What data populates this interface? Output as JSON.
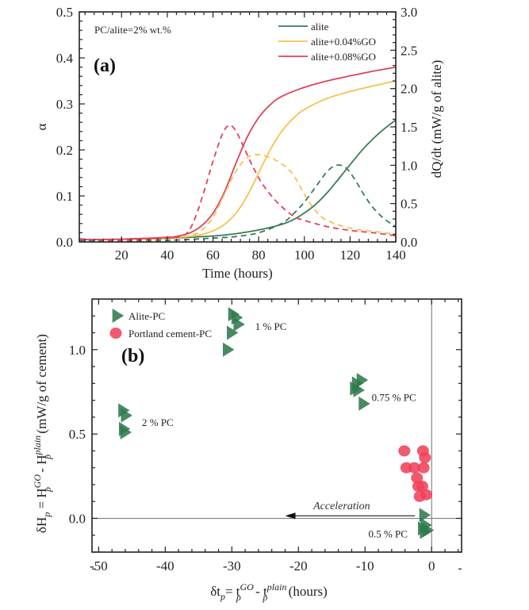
{
  "chart_data": [
    {
      "id": "a",
      "type": "line",
      "panel_label": "(a)",
      "annotation": "PC/alite=2% wt.%",
      "xlabel": "Time (hours)",
      "ylabel_left": "α",
      "ylabel_right": "dQ/dt (mW/g of alite)",
      "xlim": [
        1.5,
        140
      ],
      "ylim_left": [
        0,
        0.5
      ],
      "ylim_right": [
        0,
        3.0
      ],
      "x_ticks": [
        20,
        40,
        60,
        80,
        100,
        120,
        140
      ],
      "y_ticks_left": [
        "0.0",
        "0.1",
        "0.2",
        "0.3",
        "0.4",
        "0.5"
      ],
      "y_ticks_right": [
        "0.0",
        "0.5",
        "1.0",
        "1.5",
        "2.0",
        "2.5",
        "3.0"
      ],
      "legend": {
        "position": "top-right",
        "entries": [
          {
            "label": "alite",
            "color": "#3d7a57"
          },
          {
            "label": "alite+0.04%GO",
            "color": "#f7c14f"
          },
          {
            "label": "alite+0.08%GO",
            "color": "#e0435a"
          }
        ]
      },
      "series": [
        {
          "name": "alite α",
          "axis": "left",
          "style": "solid",
          "color": "#3d7a57",
          "x": [
            1.5,
            20,
            40,
            60,
            70,
            80,
            90,
            95,
            100,
            105,
            110,
            115,
            120,
            125,
            130,
            135,
            140
          ],
          "y": [
            0.005,
            0.006,
            0.008,
            0.013,
            0.018,
            0.026,
            0.038,
            0.048,
            0.063,
            0.082,
            0.107,
            0.137,
            0.168,
            0.198,
            0.224,
            0.246,
            0.265
          ]
        },
        {
          "name": "alite+0.04%GO α",
          "axis": "left",
          "style": "solid",
          "color": "#f7c14f",
          "x": [
            1.5,
            20,
            40,
            50,
            55,
            60,
            65,
            70,
            75,
            80,
            85,
            90,
            95,
            100,
            110,
            120,
            130,
            140
          ],
          "y": [
            0.005,
            0.006,
            0.009,
            0.012,
            0.016,
            0.024,
            0.038,
            0.062,
            0.1,
            0.15,
            0.2,
            0.24,
            0.268,
            0.288,
            0.312,
            0.327,
            0.339,
            0.35
          ]
        },
        {
          "name": "alite+0.08%GO α",
          "axis": "left",
          "style": "solid",
          "color": "#e0435a",
          "x": [
            1.5,
            20,
            40,
            45,
            50,
            55,
            60,
            65,
            70,
            75,
            80,
            85,
            90,
            100,
            110,
            120,
            130,
            140
          ],
          "y": [
            0.005,
            0.006,
            0.01,
            0.013,
            0.02,
            0.035,
            0.062,
            0.108,
            0.17,
            0.228,
            0.27,
            0.298,
            0.316,
            0.336,
            0.35,
            0.361,
            0.371,
            0.38
          ]
        },
        {
          "name": "alite dQ/dt",
          "axis": "right",
          "style": "dashed",
          "color": "#3d7a57",
          "x": [
            1.5,
            20,
            40,
            60,
            70,
            80,
            90,
            95,
            100,
            105,
            110,
            114,
            118,
            122,
            126,
            130,
            135,
            140
          ],
          "y": [
            0.02,
            0.01,
            0.02,
            0.05,
            0.07,
            0.12,
            0.24,
            0.36,
            0.52,
            0.72,
            0.92,
            1.0,
            0.97,
            0.82,
            0.62,
            0.45,
            0.3,
            0.2
          ]
        },
        {
          "name": "alite+0.04%GO dQ/dt",
          "axis": "right",
          "style": "dashed",
          "color": "#f7c14f",
          "x": [
            1.5,
            20,
            40,
            50,
            55,
            60,
            65,
            70,
            75,
            80,
            85,
            90,
            95,
            100,
            105,
            110,
            120,
            130,
            140
          ],
          "y": [
            0.04,
            0.02,
            0.04,
            0.08,
            0.15,
            0.32,
            0.62,
            0.92,
            1.1,
            1.14,
            1.1,
            1.02,
            0.88,
            0.62,
            0.4,
            0.28,
            0.18,
            0.14,
            0.1
          ]
        },
        {
          "name": "alite+0.08%GO dQ/dt",
          "axis": "right",
          "style": "dashed",
          "color": "#e0435a",
          "x": [
            1.5,
            20,
            40,
            48,
            52,
            56,
            60,
            64,
            67,
            70,
            74,
            78,
            82,
            88,
            95,
            100,
            110,
            120,
            130,
            140
          ],
          "y": [
            0.04,
            0.02,
            0.05,
            0.1,
            0.3,
            0.65,
            1.05,
            1.4,
            1.52,
            1.45,
            1.2,
            0.95,
            0.74,
            0.52,
            0.34,
            0.28,
            0.2,
            0.15,
            0.12,
            0.08
          ]
        }
      ]
    },
    {
      "id": "b",
      "type": "scatter",
      "panel_label": "(b)",
      "xlabel": "δt_p = t_p^GO - t_p^plain (hours)",
      "xlabel_parts": {
        "main": "δt",
        "sub1": "p",
        "eq": "= t",
        "sup2": "GO",
        "sub2": "p",
        "minus": " - t",
        "sup3": "plain",
        "sub3": "p",
        "unit": " (hours)"
      },
      "ylabel": "δH_p = H_p^GO - H_p^plain (mW/g of cement)",
      "ylabel_parts": {
        "main": "δH",
        "sub1": "p",
        "eq": " = H",
        "sup2": "GO",
        "sub2": "p",
        "minus": " - H",
        "sup3": "plain",
        "sub3": "p",
        "unit": " (mW/g of cement)"
      },
      "xlim": [
        -51,
        4.5
      ],
      "ylim": [
        -0.2,
        1.3
      ],
      "x_ticks": [
        "-50",
        "-40",
        "-30",
        "-20",
        "-10",
        "0"
      ],
      "x_tick_values": [
        -50,
        -40,
        -30,
        -20,
        -10,
        0
      ],
      "y_ticks": [
        "0.0",
        "0.5",
        "1.0"
      ],
      "y_tick_values": [
        0.0,
        0.5,
        1.0
      ],
      "reference_lines": {
        "x": 0,
        "y": 0
      },
      "legend": {
        "position": "top-left",
        "entries": [
          {
            "label": "Alite-PC",
            "marker": "triangle-right",
            "color": "#2f7a4d"
          },
          {
            "label": "Portland cement-PC",
            "marker": "circle",
            "color": "#f0415a"
          }
        ]
      },
      "annotations": [
        {
          "text": "1 % PC",
          "x": -26.5,
          "y": 1.14
        },
        {
          "text": "2 % PC",
          "x": -43.5,
          "y": 0.57
        },
        {
          "text": "0.75 % PC",
          "x": -9.0,
          "y": 0.72
        },
        {
          "text": "0.5 % PC",
          "x": -9.5,
          "y": -0.09
        },
        {
          "text": "Acceleration",
          "x": -13.5,
          "y": 0.035,
          "arrow_from_x": -2.5,
          "arrow_to_x": -22.0,
          "arrow_y": 0.015
        }
      ],
      "series": [
        {
          "name": "Alite-PC",
          "marker": "triangle-right",
          "color": "#2f7a4d",
          "points": [
            [
              -29.8,
              1.21
            ],
            [
              -29.3,
              1.19
            ],
            [
              -29.0,
              1.15
            ],
            [
              -30.0,
              1.1
            ],
            [
              -30.6,
              1.0
            ],
            [
              -46.3,
              0.64
            ],
            [
              -45.9,
              0.61
            ],
            [
              -46.2,
              0.53
            ],
            [
              -46.0,
              0.51
            ],
            [
              -10.5,
              0.82
            ],
            [
              -11.2,
              0.8
            ],
            [
              -11.5,
              0.77
            ],
            [
              -11.0,
              0.76
            ],
            [
              -10.2,
              0.68
            ],
            [
              -1.1,
              0.02
            ],
            [
              -0.9,
              -0.04
            ],
            [
              -1.3,
              -0.06
            ],
            [
              -0.6,
              -0.07
            ],
            [
              -1.0,
              -0.08
            ]
          ]
        },
        {
          "name": "Portland cement-PC",
          "marker": "circle",
          "color": "#f0415a",
          "points": [
            [
              -4.1,
              0.4
            ],
            [
              -1.3,
              0.4
            ],
            [
              -1.0,
              0.36
            ],
            [
              -3.8,
              0.3
            ],
            [
              -2.6,
              0.3
            ],
            [
              -1.2,
              0.3
            ],
            [
              -2.2,
              0.24
            ],
            [
              -2.0,
              0.19
            ],
            [
              -1.4,
              0.19
            ],
            [
              -0.8,
              0.14
            ],
            [
              -1.8,
              0.13
            ]
          ]
        }
      ]
    }
  ]
}
